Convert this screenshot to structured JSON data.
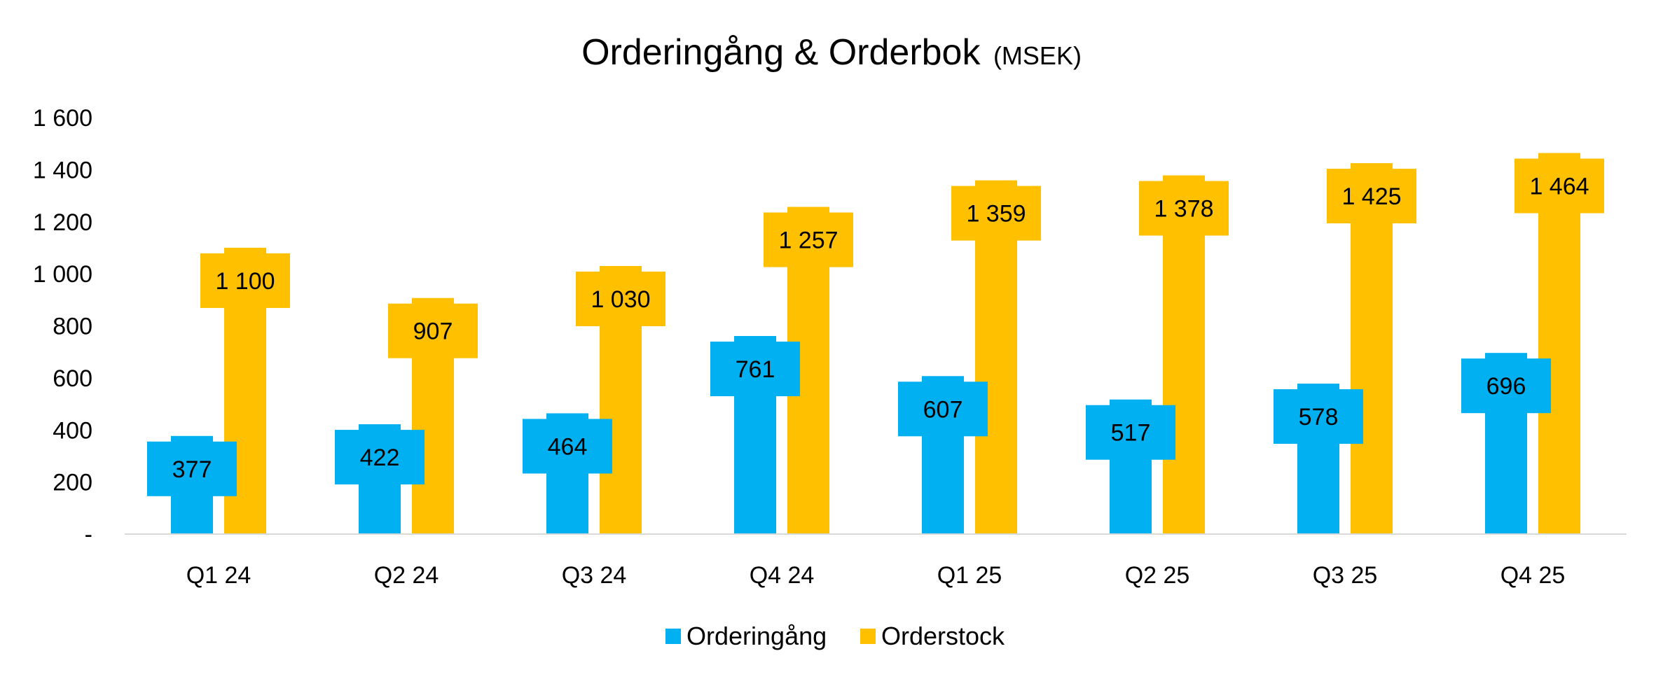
{
  "chart_data": {
    "type": "bar",
    "title": "Orderingång & Orderbok",
    "subtitle": "(MSEK)",
    "categories": [
      "Q1 24",
      "Q2 24",
      "Q3 24",
      "Q4 24",
      "Q1 25",
      "Q2 25",
      "Q3 25",
      "Q4 25"
    ],
    "series": [
      {
        "name": "Orderingång",
        "color": "#00B0F0",
        "values": [
          377,
          422,
          464,
          761,
          607,
          517,
          578,
          696
        ],
        "labels": [
          "377",
          "422",
          "464",
          "761",
          "607",
          "517",
          "578",
          "696"
        ]
      },
      {
        "name": "Orderstock",
        "color": "#FFC000",
        "values": [
          1100,
          907,
          1030,
          1257,
          1359,
          1378,
          1425,
          1464
        ],
        "labels": [
          "1 100",
          "907",
          "1 030",
          "1 257",
          "1 359",
          "1 378",
          "1 425",
          "1 464"
        ]
      }
    ],
    "ylim": [
      0,
      1600
    ],
    "yticks": [
      0,
      200,
      400,
      600,
      800,
      1000,
      1200,
      1400,
      1600
    ],
    "ytick_labels": [
      "-",
      "200",
      "400",
      "600",
      "800",
      "1 000",
      "1 200",
      "1 400",
      "1 600"
    ],
    "legend_position": "bottom-center",
    "grid": false
  }
}
